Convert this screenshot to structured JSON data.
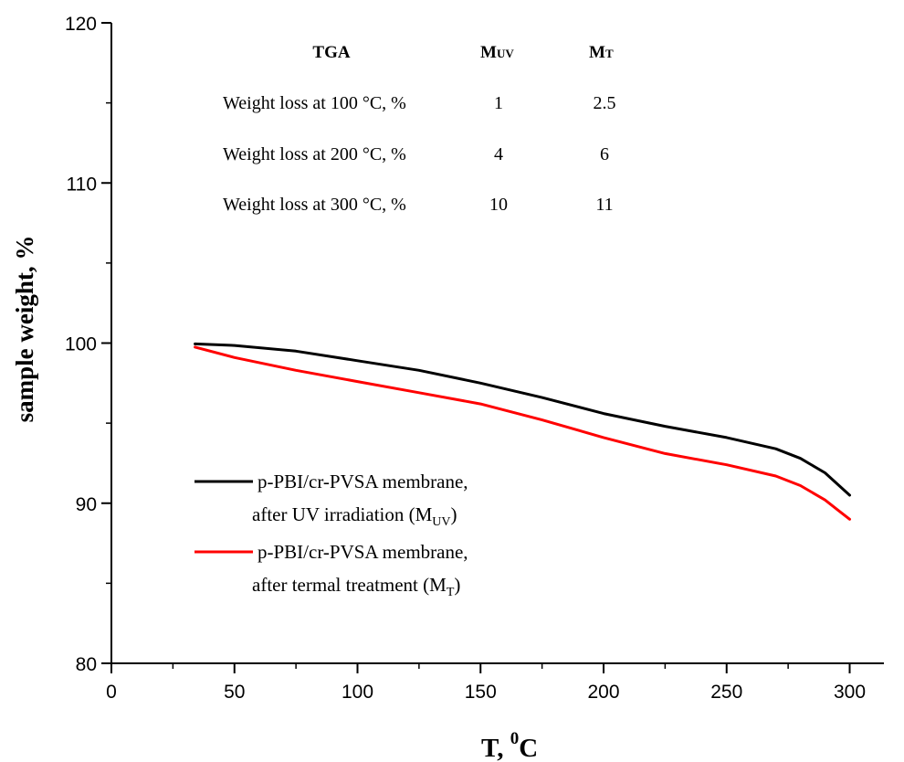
{
  "chart_data": {
    "type": "line",
    "xlabel": "T, ",
    "xlabel_sup": "0",
    "xlabel_tail": "C",
    "ylabel": "sample weight, %",
    "xlim": [
      0,
      310
    ],
    "ylim": [
      80,
      120
    ],
    "x_ticks": [
      0,
      50,
      100,
      150,
      200,
      250,
      300
    ],
    "y_ticks": [
      80,
      90,
      100,
      110,
      120
    ],
    "grid": false,
    "legend_position": "bottom-left",
    "series": [
      {
        "name": "p-PBI/cr-PVSA membrane, after UV irradiation (MUV)",
        "legend_line1": "p-PBI/cr-PVSA membrane,",
        "legend_line2": "after UV irradiation (M",
        "legend_sub": "UV",
        "legend_close": ")",
        "color": "#000000",
        "x": [
          34,
          50,
          75,
          100,
          125,
          150,
          175,
          200,
          225,
          250,
          270,
          280,
          290,
          295,
          300
        ],
        "y": [
          99.95,
          99.85,
          99.5,
          98.9,
          98.3,
          97.5,
          96.6,
          95.6,
          94.8,
          94.1,
          93.4,
          92.8,
          91.9,
          91.2,
          90.5
        ]
      },
      {
        "name": "p-PBI/cr-PVSA membrane, after termal treatment (MT)",
        "legend_line1": "p-PBI/cr-PVSA membrane,",
        "legend_line2": "after termal treatment (M",
        "legend_sub": "T",
        "legend_close": ")",
        "color": "#ff0000",
        "x": [
          34,
          50,
          75,
          100,
          125,
          150,
          175,
          200,
          225,
          250,
          270,
          280,
          290,
          295,
          300
        ],
        "y": [
          99.75,
          99.1,
          98.3,
          97.6,
          96.9,
          96.2,
          95.2,
          94.1,
          93.1,
          92.4,
          91.7,
          91.1,
          90.2,
          89.6,
          89.0
        ]
      }
    ],
    "table": {
      "headers": [
        {
          "main": "TGA",
          "sub": ""
        },
        {
          "main": "M",
          "sub": "UV"
        },
        {
          "main": "M",
          "sub": "T"
        }
      ],
      "rows": [
        {
          "label": "Weight loss at 100 °C, %",
          "muv": "1",
          "mt": "2.5"
        },
        {
          "label": "Weight loss at 200 °C, %",
          "muv": "4",
          "mt": "6"
        },
        {
          "label": "Weight loss at 300 °C, %",
          "muv": "10",
          "mt": "11"
        }
      ]
    }
  }
}
